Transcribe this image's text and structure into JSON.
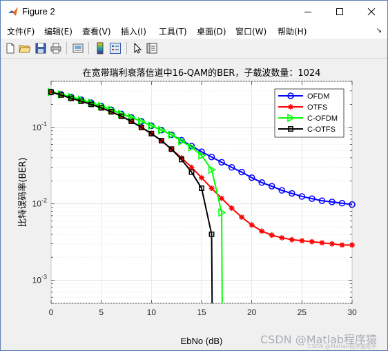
{
  "window": {
    "title": "Figure 2",
    "controls": {
      "minimize": "minimize",
      "maximize": "maximize",
      "close": "close"
    }
  },
  "menu": {
    "items": [
      "文件(F)",
      "编辑(E)",
      "查看(V)",
      "插入(I)",
      "工具(T)",
      "桌面(D)",
      "窗口(W)",
      "帮助(H)"
    ],
    "overflow": "↘"
  },
  "toolbar": {
    "icons": [
      "new-figure-icon",
      "open-file-icon",
      "save-icon",
      "print-icon",
      "link-plot-icon",
      "insert-colorbar-icon",
      "insert-legend-icon",
      "pointer-icon",
      "property-inspector-icon"
    ]
  },
  "watermark": "CSDN @Matlab程序猿",
  "watermark_small": "CSDN @Matlab程序猿助手",
  "chart_data": {
    "type": "line",
    "title": "在宽带瑞利衰落信道中16-QAM的BER，子载波数量：1024",
    "xlabel": "EbNo (dB)",
    "ylabel": "比特误码率(BER)",
    "xlim": [
      0,
      30
    ],
    "ylim": [
      0.0005,
      0.4
    ],
    "yscale": "log",
    "xticks": [
      0,
      5,
      10,
      15,
      20,
      25,
      30
    ],
    "xtick_labels": [
      "0",
      "5",
      "10",
      "15",
      "20",
      "25",
      "30"
    ],
    "yticks": [
      0.001,
      0.01,
      0.1
    ],
    "ytick_labels": [
      "10^-3",
      "10^-2",
      "10^-1"
    ],
    "grid": true,
    "legend_position": "top-right",
    "series": [
      {
        "name": "OFDM",
        "color": "#0000ff",
        "marker": "circle",
        "x": [
          0,
          1,
          2,
          3,
          4,
          5,
          6,
          7,
          8,
          9,
          10,
          11,
          12,
          13,
          14,
          15,
          16,
          17,
          18,
          19,
          20,
          21,
          22,
          23,
          24,
          25,
          26,
          27,
          28,
          29,
          30
        ],
        "y": [
          0.29,
          0.27,
          0.25,
          0.23,
          0.21,
          0.19,
          0.17,
          0.15,
          0.135,
          0.12,
          0.105,
          0.092,
          0.08,
          0.068,
          0.057,
          0.048,
          0.041,
          0.035,
          0.03,
          0.026,
          0.022,
          0.019,
          0.017,
          0.015,
          0.0137,
          0.0125,
          0.0117,
          0.011,
          0.0106,
          0.0102,
          0.0098
        ]
      },
      {
        "name": "OTFS",
        "color": "#ff0000",
        "marker": "star",
        "x": [
          0,
          1,
          2,
          3,
          4,
          5,
          6,
          7,
          8,
          9,
          10,
          11,
          12,
          13,
          14,
          15,
          16,
          17,
          18,
          19,
          20,
          21,
          22,
          23,
          24,
          25,
          26,
          27,
          28,
          29,
          30
        ],
        "y": [
          0.29,
          0.265,
          0.24,
          0.22,
          0.2,
          0.18,
          0.16,
          0.14,
          0.12,
          0.1,
          0.083,
          0.067,
          0.052,
          0.04,
          0.03,
          0.022,
          0.016,
          0.0118,
          0.0088,
          0.0067,
          0.0053,
          0.0044,
          0.0039,
          0.0036,
          0.0034,
          0.0033,
          0.0032,
          0.0031,
          0.003,
          0.0029,
          0.0029
        ]
      },
      {
        "name": "C-OFDM",
        "color": "#00ff00",
        "marker": "triangle-right",
        "x": [
          0,
          1,
          2,
          3,
          4,
          5,
          6,
          7,
          8,
          9,
          10,
          11,
          12,
          13,
          14,
          15,
          16,
          17
        ],
        "y": [
          0.29,
          0.27,
          0.25,
          0.23,
          0.21,
          0.19,
          0.17,
          0.15,
          0.135,
          0.12,
          0.105,
          0.092,
          0.08,
          0.066,
          0.055,
          0.043,
          0.028,
          0.0077
        ]
      },
      {
        "name": "C-OTFS",
        "color": "#000000",
        "marker": "square",
        "x": [
          0,
          1,
          2,
          3,
          4,
          5,
          6,
          7,
          8,
          9,
          10,
          11,
          12,
          13,
          14,
          15,
          16
        ],
        "y": [
          0.29,
          0.265,
          0.24,
          0.22,
          0.2,
          0.18,
          0.16,
          0.14,
          0.12,
          0.1,
          0.083,
          0.067,
          0.052,
          0.038,
          0.026,
          0.016,
          0.004
        ]
      }
    ]
  }
}
